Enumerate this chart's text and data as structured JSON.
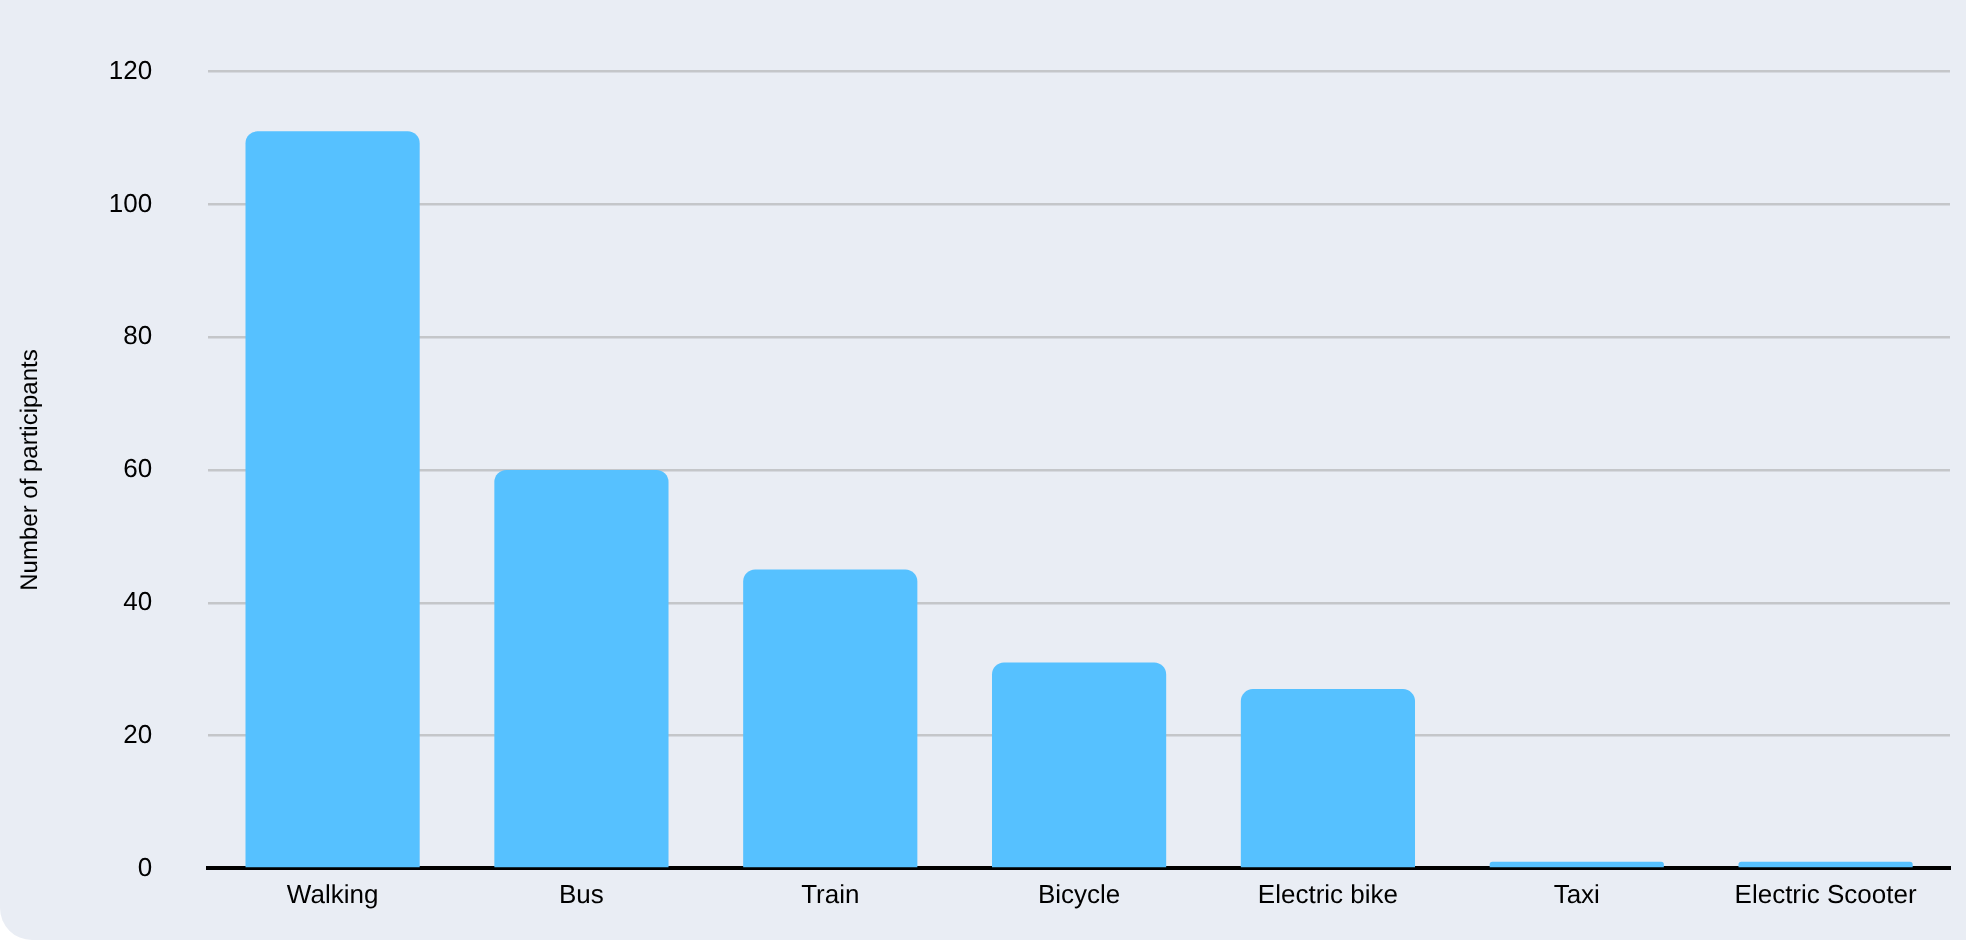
{
  "chart_data": {
    "type": "bar",
    "ylabel": "Number of participants",
    "categories": [
      "Walking",
      "Bus",
      "Train",
      "Bicycle",
      "Electric bike",
      "Taxi",
      "Electric Scooter"
    ],
    "values": [
      111,
      60,
      45,
      31,
      27,
      1,
      1
    ],
    "color": "#56c1ff",
    "ylim": [
      0,
      120
    ],
    "yticks": [
      0,
      20,
      40,
      60,
      80,
      100,
      120
    ],
    "grid": "y",
    "legend": false
  }
}
